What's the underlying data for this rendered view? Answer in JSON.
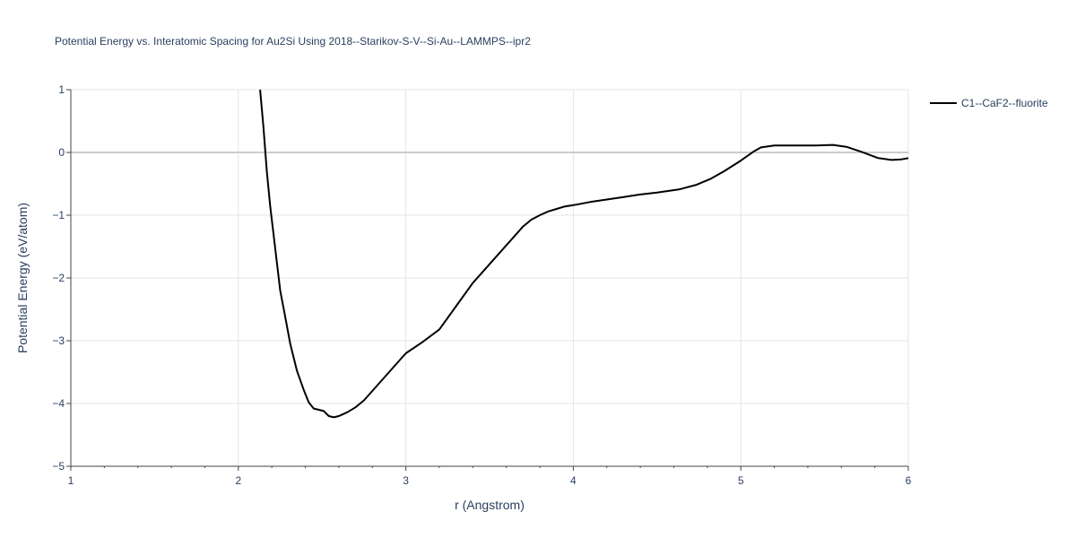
{
  "chart_data": {
    "type": "line",
    "title": "Potential Energy vs. Interatomic Spacing for Au2Si Using 2018--Starikov-S-V--Si-Au--LAMMPS--ipr2",
    "xlabel": "r (Angstrom)",
    "ylabel": "Potential Energy (eV/atom)",
    "xlim": [
      1,
      6
    ],
    "ylim": [
      -5,
      1
    ],
    "x_ticks": [
      1,
      2,
      3,
      4,
      5,
      6
    ],
    "x_tick_labels": [
      "1",
      "2",
      "3",
      "4",
      "5",
      "6"
    ],
    "y_ticks": [
      -5,
      -4,
      -3,
      -2,
      -1,
      0,
      1
    ],
    "y_tick_labels": [
      "−5",
      "−4",
      "−3",
      "−2",
      "−1",
      "0",
      "1"
    ],
    "grid": true,
    "legend_position": "top-right",
    "colors": {
      "series": "#000000",
      "grid": "#e5e5e5",
      "zeroline": "#cccccc",
      "text": "#2a3f5f"
    },
    "series": [
      {
        "name": "C1--CaF2--fluorite",
        "x": [
          2.13,
          2.15,
          2.17,
          2.19,
          2.21,
          2.23,
          2.25,
          2.28,
          2.31,
          2.35,
          2.39,
          2.42,
          2.45,
          2.48,
          2.51,
          2.54,
          2.57,
          2.6,
          2.65,
          2.7,
          2.75,
          2.8,
          2.9,
          3.0,
          3.1,
          3.2,
          3.3,
          3.4,
          3.5,
          3.6,
          3.7,
          3.75,
          3.8,
          3.85,
          3.9,
          3.95,
          4.0,
          4.1,
          4.2,
          4.3,
          4.4,
          4.5,
          4.63,
          4.73,
          4.82,
          4.9,
          5.0,
          5.08,
          5.12,
          5.2,
          5.3,
          5.45,
          5.55,
          5.63,
          5.72,
          5.82,
          5.9,
          5.96,
          6.0
        ],
        "y": [
          1.0,
          0.4,
          -0.3,
          -0.85,
          -1.3,
          -1.75,
          -2.2,
          -2.62,
          -3.05,
          -3.48,
          -3.78,
          -3.98,
          -4.08,
          -4.1,
          -4.12,
          -4.2,
          -4.22,
          -4.2,
          -4.14,
          -4.06,
          -3.95,
          -3.8,
          -3.5,
          -3.2,
          -3.02,
          -2.82,
          -2.45,
          -2.08,
          -1.78,
          -1.48,
          -1.18,
          -1.07,
          -1.0,
          -0.94,
          -0.9,
          -0.86,
          -0.84,
          -0.79,
          -0.75,
          -0.71,
          -0.67,
          -0.64,
          -0.59,
          -0.52,
          -0.42,
          -0.3,
          -0.13,
          0.02,
          0.08,
          0.11,
          0.11,
          0.11,
          0.12,
          0.09,
          0.01,
          -0.09,
          -0.12,
          -0.11,
          -0.09
        ]
      }
    ]
  }
}
